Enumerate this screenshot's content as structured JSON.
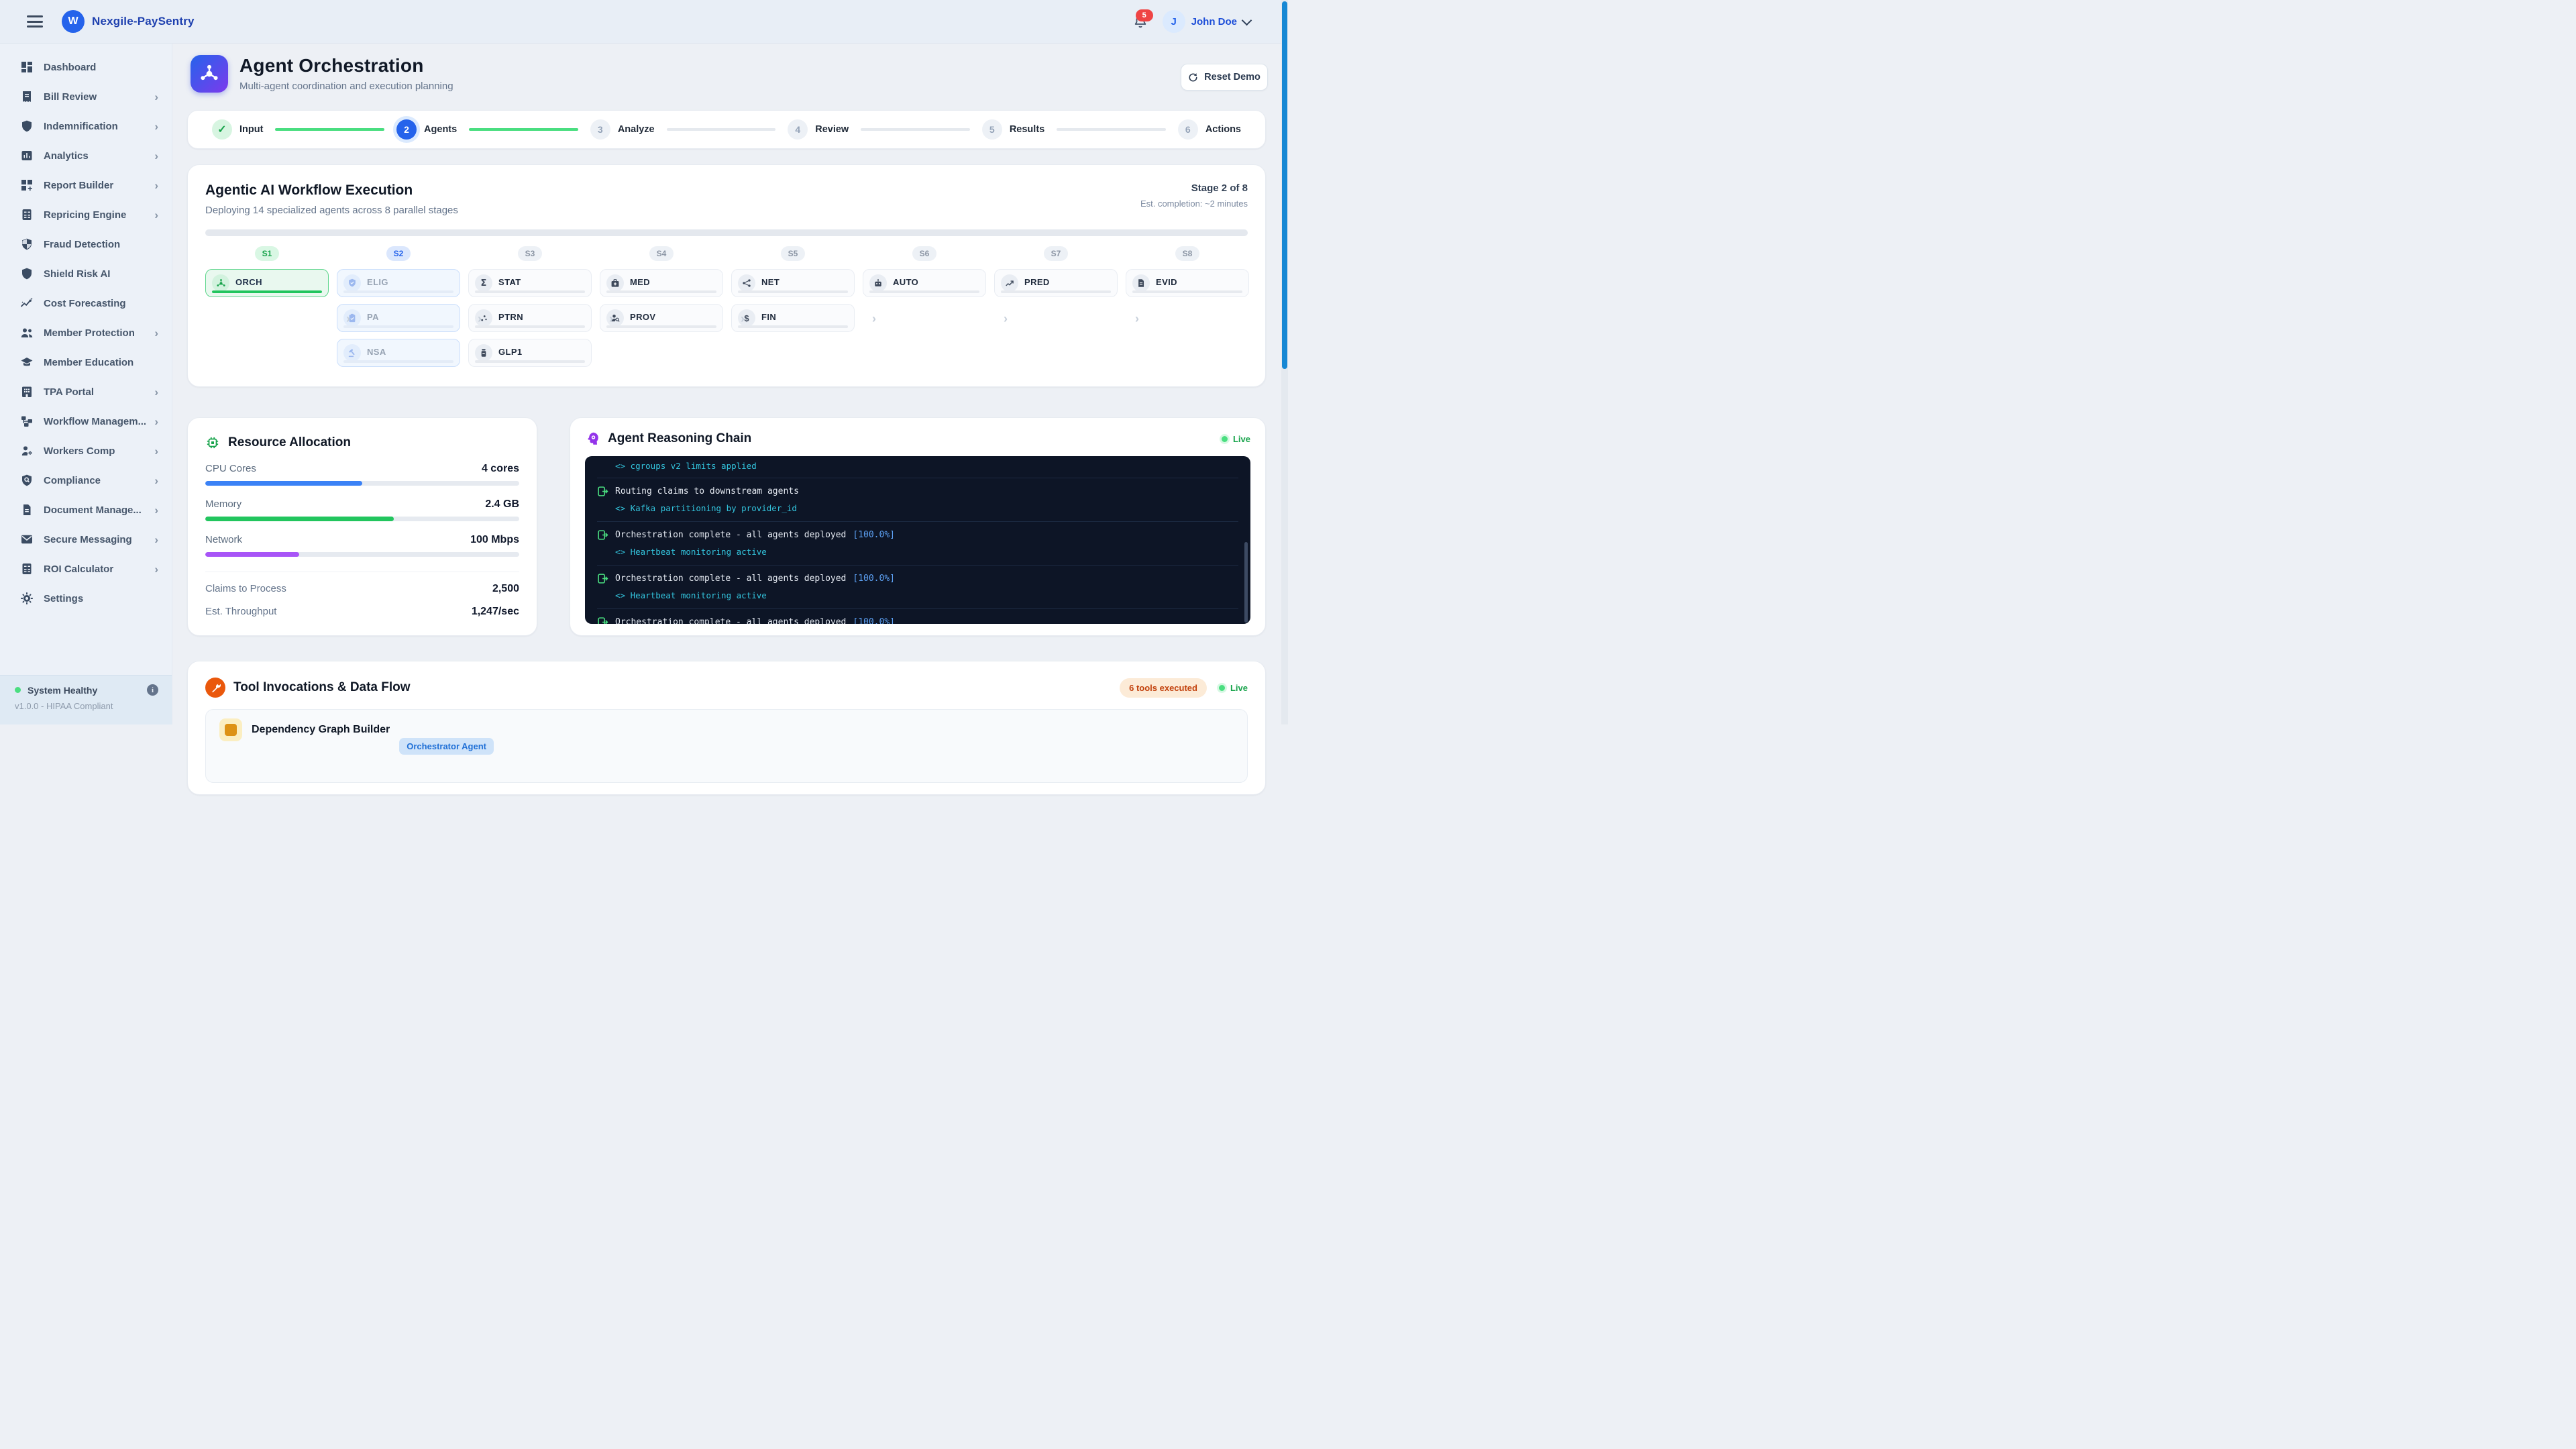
{
  "topbar": {
    "brand": "Nexgile-PaySentry",
    "logo_letter": "W",
    "notification_count": "5",
    "user_initial": "J",
    "user_name": "John Doe"
  },
  "sidebar": {
    "items": [
      {
        "label": "Dashboard",
        "icon": "dashboard-icon",
        "expandable": false
      },
      {
        "label": "Bill Review",
        "icon": "receipt-icon",
        "expandable": true
      },
      {
        "label": "Indemnification",
        "icon": "shield-icon",
        "expandable": true
      },
      {
        "label": "Analytics",
        "icon": "bar-chart-icon",
        "expandable": true
      },
      {
        "label": "Report Builder",
        "icon": "grid-plus-icon",
        "expandable": true
      },
      {
        "label": "Repricing Engine",
        "icon": "calculator-icon",
        "expandable": true
      },
      {
        "label": "Fraud Detection",
        "icon": "shield-half-icon",
        "expandable": false
      },
      {
        "label": "Shield Risk AI",
        "icon": "shield-icon",
        "expandable": false
      },
      {
        "label": "Cost Forecasting",
        "icon": "trend-sparkle-icon",
        "expandable": false
      },
      {
        "label": "Member Protection",
        "icon": "people-icon",
        "expandable": true
      },
      {
        "label": "Member Education",
        "icon": "graduation-cap-icon",
        "expandable": false
      },
      {
        "label": "TPA Portal",
        "icon": "building-icon",
        "expandable": true
      },
      {
        "label": "Workflow Managem...",
        "icon": "workflow-icon",
        "expandable": true
      },
      {
        "label": "Workers Comp",
        "icon": "worker-gear-icon",
        "expandable": true
      },
      {
        "label": "Compliance",
        "icon": "shield-search-icon",
        "expandable": true
      },
      {
        "label": "Document Manage...",
        "icon": "document-icon",
        "expandable": true
      },
      {
        "label": "Secure Messaging",
        "icon": "envelope-icon",
        "expandable": true
      },
      {
        "label": "ROI Calculator",
        "icon": "calculator-icon",
        "expandable": true
      },
      {
        "label": "Settings",
        "icon": "gear-icon",
        "expandable": false
      }
    ],
    "footer": {
      "status": "System Healthy",
      "version": "v1.0.0 - HIPAA Compliant"
    }
  },
  "page": {
    "title": "Agent Orchestration",
    "subtitle": "Multi-agent coordination and execution planning",
    "reset_button": "Reset Demo"
  },
  "stepper": {
    "steps": [
      {
        "label": "Input",
        "state": "complete",
        "number": "1"
      },
      {
        "label": "Agents",
        "state": "current",
        "number": "2"
      },
      {
        "label": "Analyze",
        "state": "upcoming",
        "number": "3"
      },
      {
        "label": "Review",
        "state": "upcoming",
        "number": "4"
      },
      {
        "label": "Results",
        "state": "upcoming",
        "number": "5"
      },
      {
        "label": "Actions",
        "state": "upcoming",
        "number": "6"
      }
    ]
  },
  "workflow": {
    "title": "Agentic AI Workflow Execution",
    "subtitle": "Deploying 14 specialized agents across 8 parallel stages",
    "stage_label": "Stage 2 of 8",
    "eta_label": "Est. completion: ~2 minutes",
    "progress_pct": 13,
    "stages": [
      {
        "badge": "S1",
        "agents": [
          {
            "code": "ORCH",
            "icon": "hub-icon",
            "state": "active",
            "progress_pct": 100
          }
        ]
      },
      {
        "badge": "S2",
        "agents": [
          {
            "code": "ELIG",
            "icon": "shield-check-icon",
            "state": "pending",
            "progress_pct": 0
          },
          {
            "code": "PA",
            "icon": "clipboard-check-icon",
            "state": "pending",
            "progress_pct": 0
          },
          {
            "code": "NSA",
            "icon": "gavel-icon",
            "state": "pending",
            "progress_pct": 0
          }
        ]
      },
      {
        "badge": "S3",
        "agents": [
          {
            "code": "STAT",
            "icon": "sigma-icon",
            "state": "idle",
            "progress_pct": 0
          },
          {
            "code": "PTRN",
            "icon": "scatter-icon",
            "state": "idle",
            "progress_pct": 0
          },
          {
            "code": "GLP1",
            "icon": "pill-bottle-icon",
            "state": "idle",
            "progress_pct": 0
          }
        ]
      },
      {
        "badge": "S4",
        "agents": [
          {
            "code": "MED",
            "icon": "medical-bag-icon",
            "state": "idle",
            "progress_pct": 0
          },
          {
            "code": "PROV",
            "icon": "provider-search-icon",
            "state": "idle",
            "progress_pct": 0
          }
        ]
      },
      {
        "badge": "S5",
        "agents": [
          {
            "code": "NET",
            "icon": "network-icon",
            "state": "idle",
            "progress_pct": 0
          },
          {
            "code": "FIN",
            "icon": "dollar-icon",
            "state": "idle",
            "progress_pct": 0
          }
        ]
      },
      {
        "badge": "S6",
        "agents": [
          {
            "code": "AUTO",
            "icon": "robot-icon",
            "state": "idle",
            "progress_pct": 0
          }
        ]
      },
      {
        "badge": "S7",
        "agents": [
          {
            "code": "PRED",
            "icon": "trend-up-icon",
            "state": "idle",
            "progress_pct": 0
          }
        ]
      },
      {
        "badge": "S8",
        "agents": [
          {
            "code": "EVID",
            "icon": "evidence-doc-icon",
            "state": "idle",
            "progress_pct": 0
          }
        ]
      }
    ]
  },
  "resources": {
    "title": "Resource Allocation",
    "meters": [
      {
        "label": "CPU Cores",
        "value": "4 cores",
        "pct": 50,
        "color": "#3b82f6"
      },
      {
        "label": "Memory",
        "value": "2.4 GB",
        "pct": 60,
        "color": "#22c55e"
      },
      {
        "label": "Network",
        "value": "100 Mbps",
        "pct": 30,
        "color": "#a855f7"
      }
    ],
    "stats": [
      {
        "label": "Claims to Process",
        "value": "2,500"
      },
      {
        "label": "Est. Throughput",
        "value": "1,247/sec"
      }
    ]
  },
  "reasoning": {
    "title": "Agent Reasoning Chain",
    "live_label": "Live",
    "log": [
      {
        "message": "",
        "pct": "",
        "detail": "<> cgroups v2 limits applied"
      },
      {
        "message": "Routing claims to downstream agents",
        "pct": "",
        "detail": "<> Kafka partitioning by provider_id"
      },
      {
        "message": "Orchestration complete - all agents deployed",
        "pct": "[100.0%]",
        "detail": "<> Heartbeat monitoring active"
      },
      {
        "message": "Orchestration complete - all agents deployed",
        "pct": "[100.0%]",
        "detail": "<> Heartbeat monitoring active"
      },
      {
        "message": "Orchestration complete - all agents deployed",
        "pct": "[100.0%]",
        "detail": "<> Heartbeat monitoring active"
      }
    ]
  },
  "tools": {
    "title": "Tool Invocations & Data Flow",
    "badge": "6 tools executed",
    "live_label": "Live",
    "items": [
      {
        "name": "Dependency Graph Builder",
        "agent": "Orchestrator Agent"
      }
    ]
  }
}
